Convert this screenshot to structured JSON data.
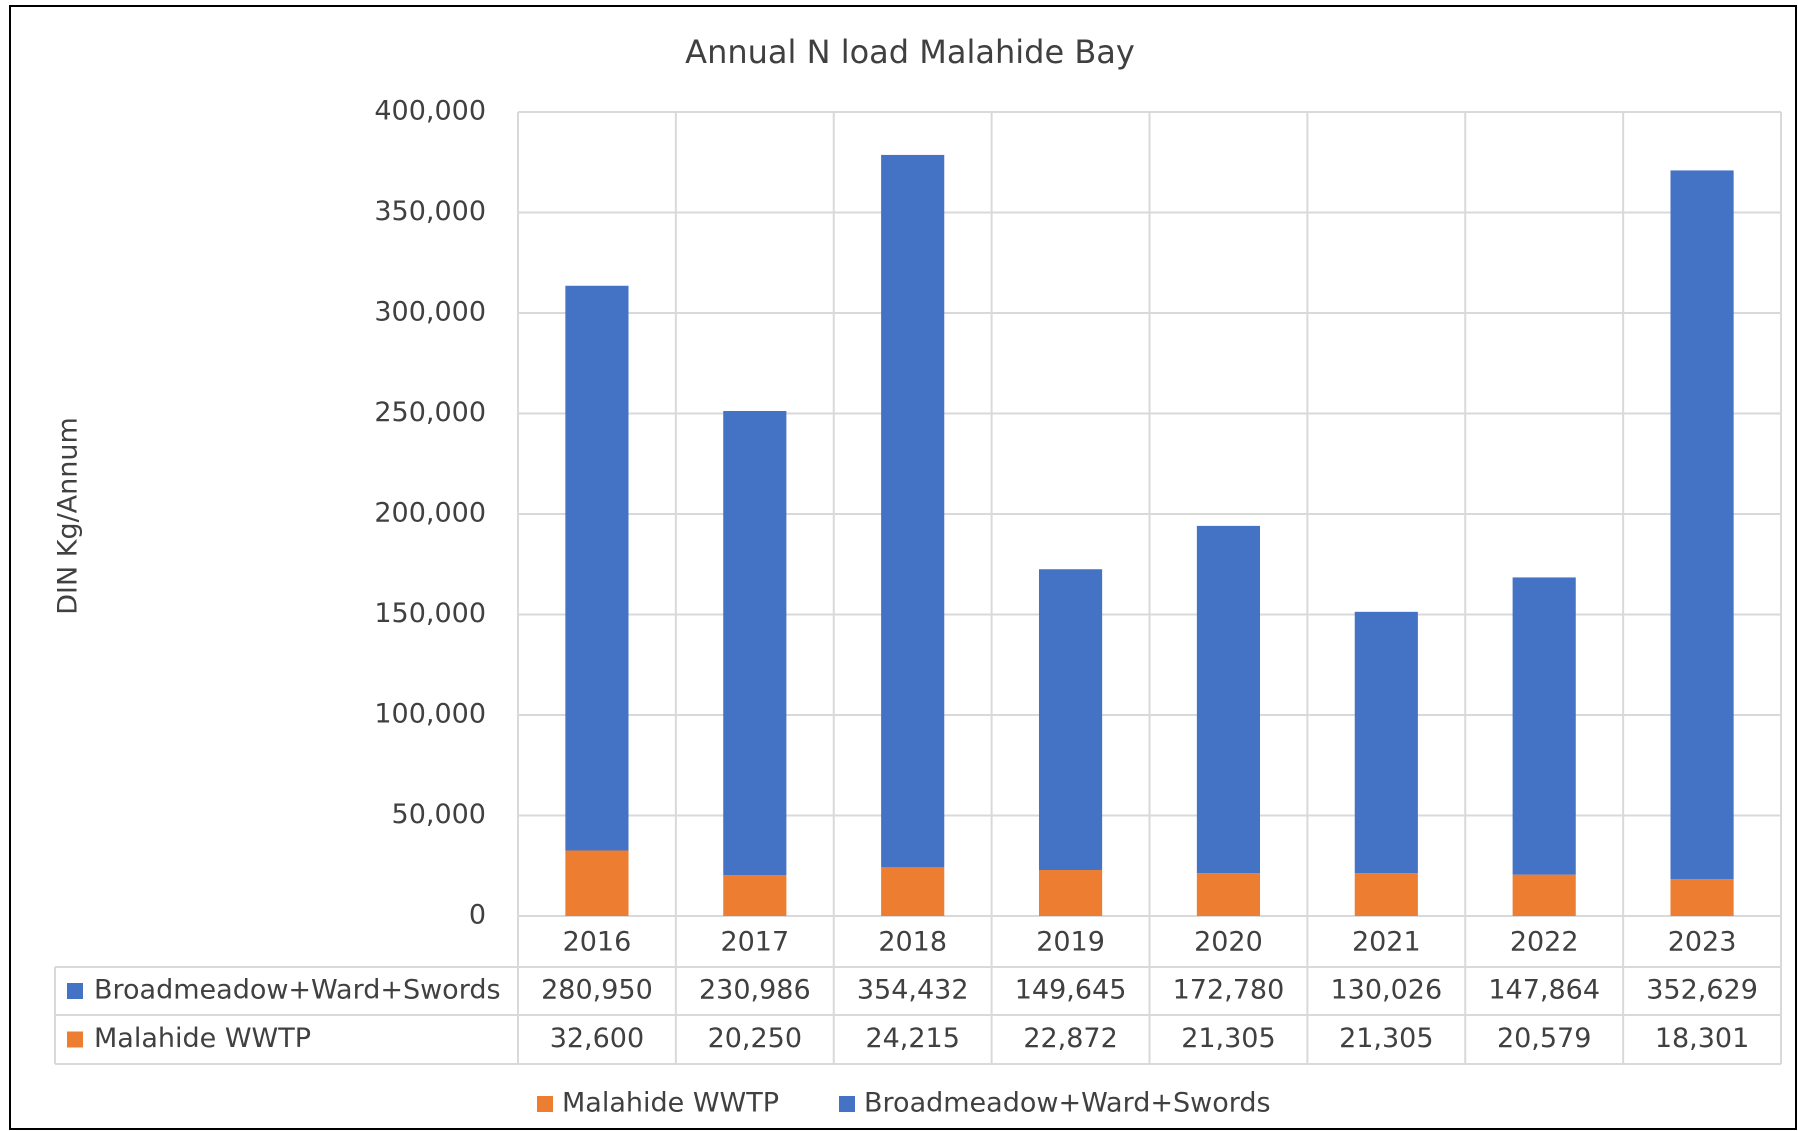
{
  "chart_data": {
    "type": "bar",
    "stacked": true,
    "title": "Annual N load Malahide Bay",
    "y_label": "DIN Kg/Annum",
    "categories": [
      "2016",
      "2017",
      "2018",
      "2019",
      "2020",
      "2021",
      "2022",
      "2023"
    ],
    "series": [
      {
        "name": "Malahide WWTP",
        "color": "#ed7d31",
        "values": [
          32600,
          20250,
          24215,
          22872,
          21305,
          21305,
          20579,
          18301
        ],
        "value_labels": [
          "32,600",
          "20,250",
          "24,215",
          "22,872",
          "21,305",
          "21,305",
          "20,579",
          "18,301"
        ]
      },
      {
        "name": "Broadmeadow+Ward+Swords",
        "color": "#4472c4",
        "values": [
          280950,
          230986,
          354432,
          149645,
          172780,
          130026,
          147864,
          352629
        ],
        "value_labels": [
          "280,950",
          "230,986",
          "354,432",
          "149,645",
          "172,780",
          "130,026",
          "147,864",
          "352,629"
        ]
      }
    ],
    "ylim": [
      0,
      400000
    ],
    "yticks": [
      0,
      {
        "value": 50000,
        "label": "50,000"
      },
      {
        "value": 100000,
        "label": "100,000"
      },
      {
        "value": 150000,
        "label": "150,000"
      },
      {
        "value": 200000,
        "label": "200,000"
      },
      {
        "value": 250000,
        "label": "250,000"
      },
      {
        "value": 300000,
        "label": "300,000"
      },
      {
        "value": 350000,
        "label": "350,000"
      },
      {
        "value": 400000,
        "label": "400,000"
      }
    ],
    "grid": true,
    "legend": "bottom",
    "data_table": true
  }
}
